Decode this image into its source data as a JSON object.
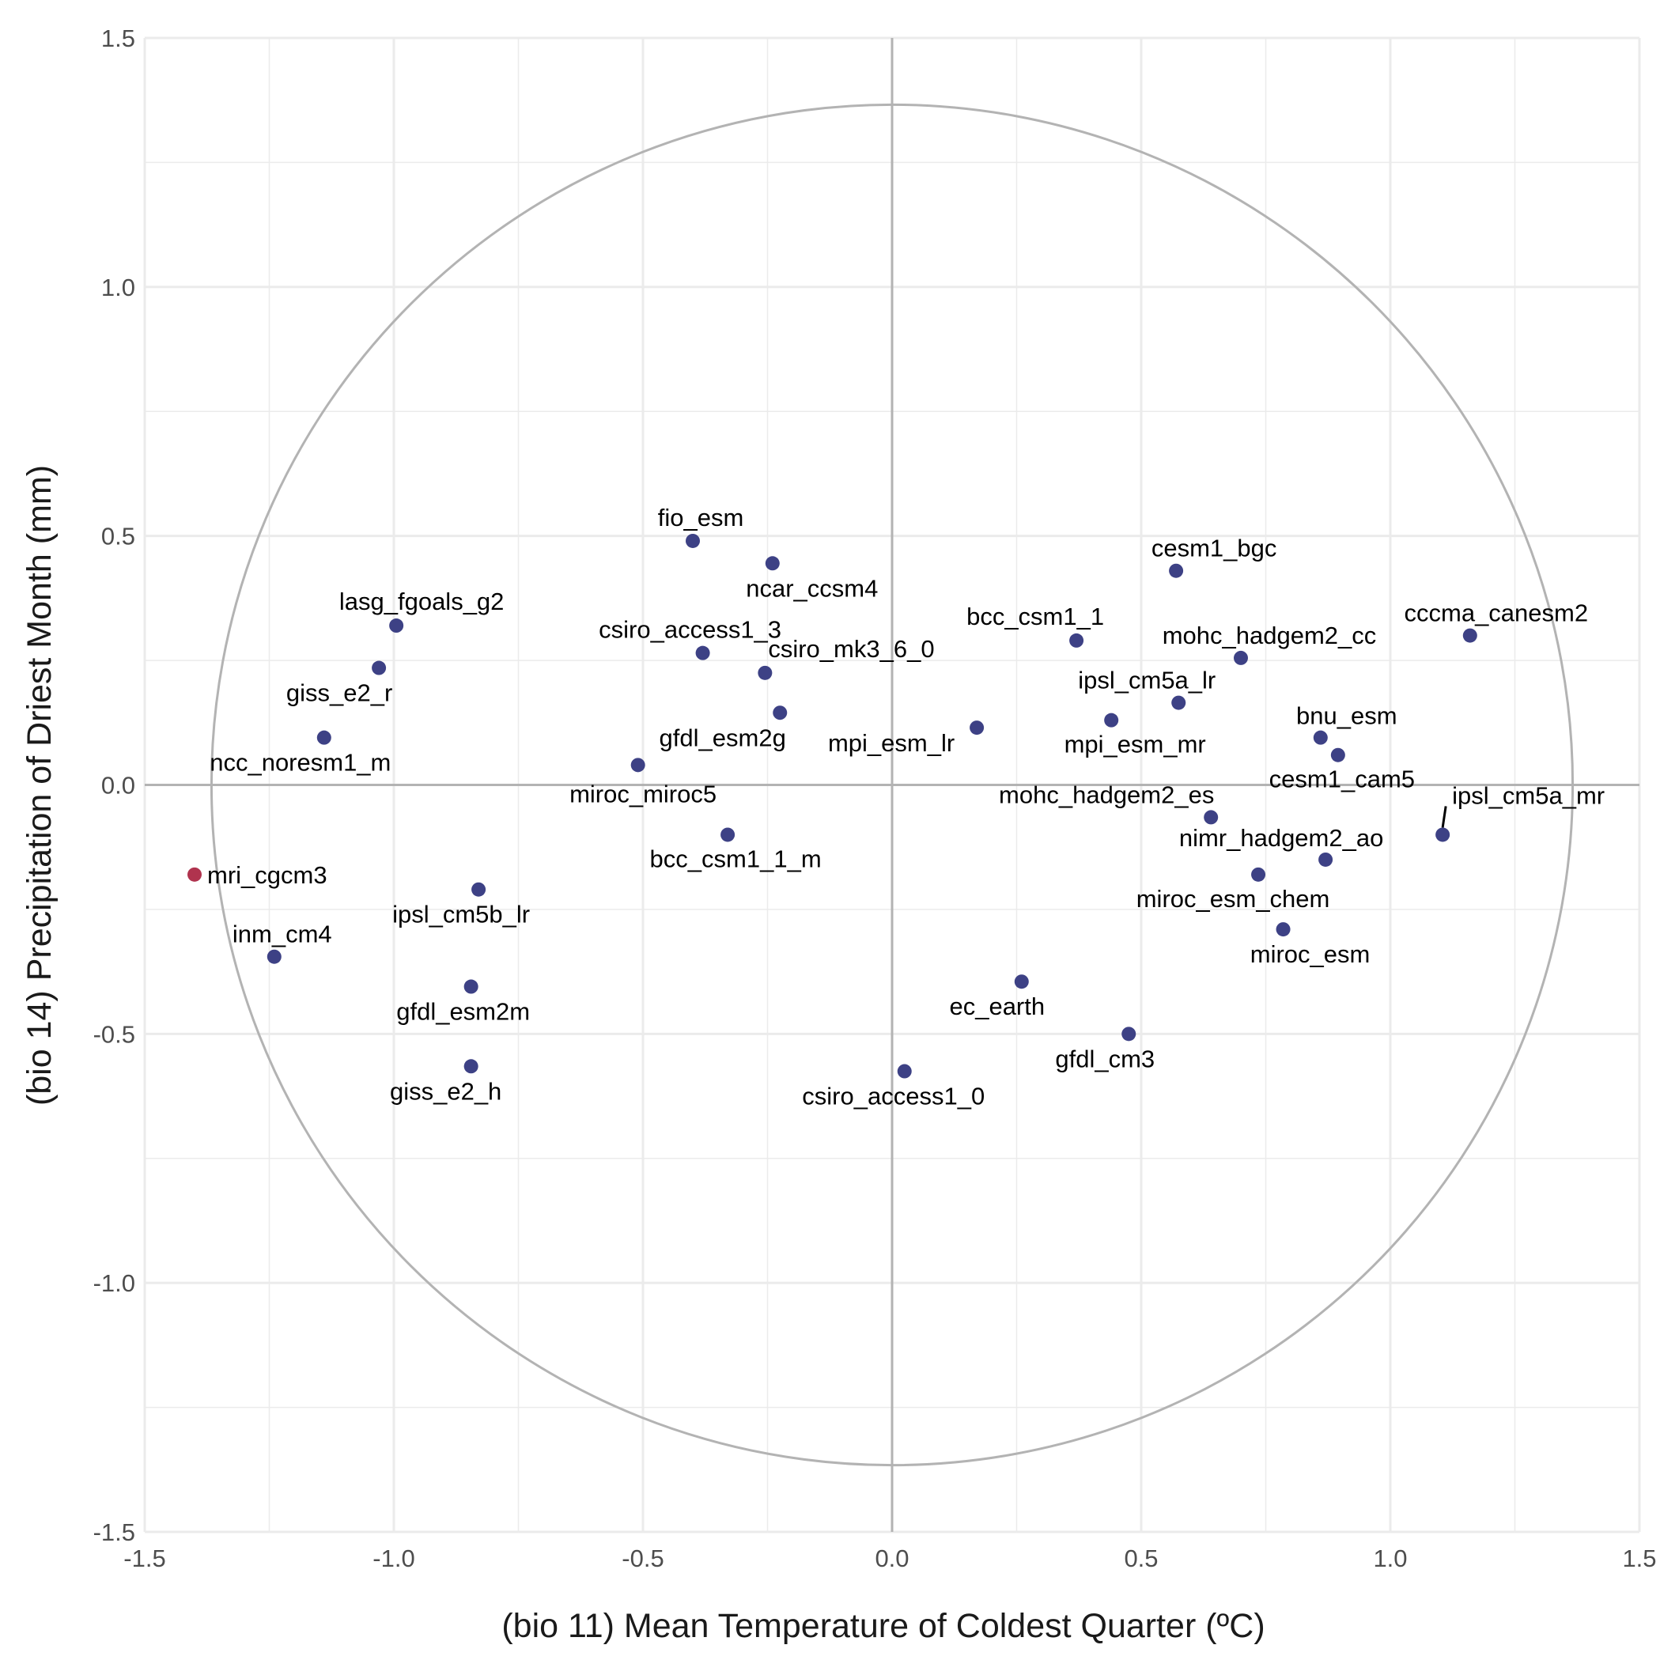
{
  "chart_data": {
    "type": "scatter",
    "xlabel": "(bio 11) Mean Temperature of Coldest Quarter (ºC)",
    "ylabel": "(bio 14) Precipitation of Driest Month (mm)",
    "xlim": [
      -1.5,
      1.5
    ],
    "ylim": [
      -1.5,
      1.5
    ],
    "x_ticks": [
      "-1.5",
      "-1.0",
      "-0.5",
      "0.0",
      "0.5",
      "1.0",
      "1.5"
    ],
    "y_ticks": [
      "1.5",
      "1.0",
      "0.5",
      "0.0",
      "-0.5",
      "-1.0",
      "-1.5"
    ],
    "grid": true,
    "reference_circle_radius": 1.366,
    "colors": {
      "point": "#3d4185",
      "highlight": "#b0334e",
      "grid": "#ebebeb",
      "axis_line": "#b3b3b3",
      "circle": "#b3b3b3"
    },
    "points": [
      {
        "label": "fio_esm",
        "x": -0.4,
        "y": 0.49,
        "highlight": false
      },
      {
        "label": "ncar_ccsm4",
        "x": -0.24,
        "y": 0.445,
        "highlight": false
      },
      {
        "label": "lasg_fgoals_g2",
        "x": -0.995,
        "y": 0.32,
        "highlight": false
      },
      {
        "label": "giss_e2_r",
        "x": -1.03,
        "y": 0.235,
        "highlight": false
      },
      {
        "label": "csiro_access1_3",
        "x": -0.38,
        "y": 0.265,
        "highlight": false
      },
      {
        "label": "csiro_mk3_6_0",
        "x": -0.255,
        "y": 0.225,
        "highlight": false
      },
      {
        "label": "",
        "x": -0.225,
        "y": 0.145,
        "highlight": false
      },
      {
        "label": "ncc_noresm1_m",
        "x": -1.14,
        "y": 0.095,
        "highlight": false
      },
      {
        "label": "gfdl_esm2g",
        "x": -0.51,
        "y": 0.04,
        "highlight": false
      },
      {
        "label": "mpi_esm_lr",
        "x": 0.17,
        "y": 0.115,
        "highlight": false
      },
      {
        "label": "bcc_csm1_1",
        "x": 0.37,
        "y": 0.29,
        "highlight": false
      },
      {
        "label": "cesm1_bgc",
        "x": 0.57,
        "y": 0.43,
        "highlight": false
      },
      {
        "label": "mohc_hadgem2_cc",
        "x": 0.7,
        "y": 0.255,
        "highlight": false
      },
      {
        "label": "ipsl_cm5a_lr",
        "x": 0.575,
        "y": 0.165,
        "highlight": false
      },
      {
        "label": "mpi_esm_mr",
        "x": 0.44,
        "y": 0.13,
        "highlight": false
      },
      {
        "label": "cccma_canesm2",
        "x": 1.16,
        "y": 0.3,
        "highlight": false
      },
      {
        "label": "bnu_esm",
        "x": 0.86,
        "y": 0.095,
        "highlight": false
      },
      {
        "label": "cesm1_cam5",
        "x": 0.895,
        "y": 0.06,
        "highlight": false
      },
      {
        "label": "ipsl_cm5a_mr",
        "x": 1.105,
        "y": -0.1,
        "highlight": false
      },
      {
        "label": "mohc_hadgem2_es",
        "x": 0.64,
        "y": -0.065,
        "highlight": false
      },
      {
        "label": "nimr_hadgem2_ao",
        "x": 0.87,
        "y": -0.15,
        "highlight": false
      },
      {
        "label": "miroc_esm_chem",
        "x": 0.735,
        "y": -0.18,
        "highlight": false
      },
      {
        "label": "miroc_esm",
        "x": 0.785,
        "y": -0.29,
        "highlight": false
      },
      {
        "label": "miroc_miroc5",
        "x": -0.33,
        "y": -0.1,
        "highlight": false
      },
      {
        "label": "bcc_csm1_1_m",
        "x": -0.33,
        "y": -0.1,
        "highlight": false,
        "marker": false
      },
      {
        "label": "mri_cgcm3",
        "x": -1.4,
        "y": -0.18,
        "highlight": true
      },
      {
        "label": "ipsl_cm5b_lr",
        "x": -0.83,
        "y": -0.21,
        "highlight": false
      },
      {
        "label": "inm_cm4",
        "x": -1.24,
        "y": -0.345,
        "highlight": false
      },
      {
        "label": "gfdl_esm2m",
        "x": -0.845,
        "y": -0.405,
        "highlight": false
      },
      {
        "label": "giss_e2_h",
        "x": -0.845,
        "y": -0.565,
        "highlight": false
      },
      {
        "label": "ec_earth",
        "x": 0.26,
        "y": -0.395,
        "highlight": false
      },
      {
        "label": "gfdl_cm3",
        "x": 0.475,
        "y": -0.5,
        "highlight": false
      },
      {
        "label": "csiro_access1_0",
        "x": 0.025,
        "y": -0.575,
        "highlight": false
      }
    ]
  }
}
